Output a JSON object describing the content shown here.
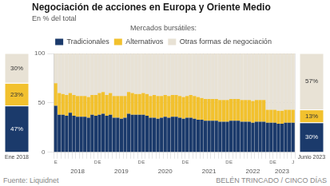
{
  "chart_data": {
    "type": "bar",
    "title": "Negociación de acciones en Europa y Oriente Medio",
    "subtitle": "En % del total",
    "source": "Fuente: Liquidnet",
    "credit": "BELÉN TRINCADO / CINCO DÍAS",
    "legend_title": "Mercados bursátiles:",
    "legend": "top",
    "stacked": true,
    "grid": true,
    "ylim": [
      0,
      100
    ],
    "yticks": [
      0,
      50,
      100
    ],
    "categories": [
      "E",
      null,
      null,
      null,
      null,
      null,
      null,
      null,
      null,
      null,
      null,
      "D",
      "E",
      null,
      null,
      null,
      null,
      null,
      null,
      null,
      null,
      null,
      null,
      "D",
      "E",
      null,
      null,
      null,
      null,
      null,
      null,
      null,
      null,
      null,
      null,
      "D",
      "E",
      null,
      null,
      null,
      null,
      null,
      null,
      null,
      null,
      null,
      null,
      "D",
      "E",
      null,
      null,
      null,
      null,
      null,
      null,
      null,
      null,
      null,
      null,
      "D",
      "E",
      null,
      null,
      null,
      null,
      "J"
    ],
    "annotations": [
      {
        "text": "2018",
        "x": 6
      },
      {
        "text": "2019",
        "x": 18
      },
      {
        "text": "2020",
        "x": 30
      },
      {
        "text": "2021",
        "x": 42
      },
      {
        "text": "2022",
        "x": 54
      },
      {
        "text": "2023",
        "x": 62
      }
    ],
    "series": [
      {
        "name": "Tradicionales",
        "color": "#1b3a6b",
        "values": [
          47,
          38,
          38,
          37,
          40,
          37,
          36,
          36,
          36,
          35,
          38,
          37,
          38,
          39,
          37,
          38,
          35,
          35,
          34,
          35,
          39,
          38,
          38,
          38,
          38,
          37,
          35,
          35,
          34,
          35,
          36,
          35,
          36,
          36,
          35,
          34,
          35,
          35,
          34,
          33,
          33,
          32,
          32,
          32,
          32,
          31,
          31,
          31,
          32,
          32,
          32,
          31,
          31,
          31,
          30,
          31,
          31,
          31,
          30,
          30,
          30,
          29,
          29,
          30,
          30,
          30
        ]
      },
      {
        "name": "Alternativos",
        "color": "#f2c12e",
        "values": [
          23,
          22,
          21,
          21,
          20,
          21,
          21,
          21,
          21,
          21,
          20,
          21,
          22,
          22,
          21,
          22,
          22,
          22,
          23,
          22,
          22,
          22,
          21,
          21,
          22,
          22,
          22,
          23,
          23,
          22,
          22,
          22,
          22,
          22,
          22,
          22,
          22,
          23,
          23,
          23,
          22,
          22,
          22,
          22,
          22,
          22,
          22,
          22,
          22,
          22,
          22,
          22,
          22,
          22,
          22,
          22,
          22,
          22,
          13,
          13,
          13,
          13,
          13,
          13,
          13,
          13
        ]
      },
      {
        "name": "Otras formas de negociación",
        "color": "#e8e2d5",
        "values": [
          30,
          40,
          41,
          42,
          40,
          42,
          43,
          43,
          43,
          44,
          42,
          42,
          40,
          39,
          42,
          40,
          43,
          43,
          43,
          43,
          39,
          40,
          41,
          41,
          40,
          41,
          43,
          42,
          43,
          43,
          42,
          43,
          42,
          42,
          43,
          44,
          43,
          42,
          43,
          44,
          45,
          46,
          46,
          46,
          46,
          47,
          47,
          47,
          46,
          46,
          46,
          47,
          47,
          47,
          48,
          47,
          47,
          47,
          57,
          57,
          57,
          58,
          58,
          57,
          57,
          57
        ]
      }
    ],
    "callouts": [
      {
        "label": "Ene 2018",
        "values": [
          47,
          23,
          30
        ],
        "value_labels": [
          "47%",
          "23%",
          "30%"
        ]
      },
      {
        "label": "Junio 2023",
        "values": [
          30,
          13,
          57
        ],
        "value_labels": [
          "30%",
          "13%",
          "57%"
        ]
      }
    ]
  }
}
